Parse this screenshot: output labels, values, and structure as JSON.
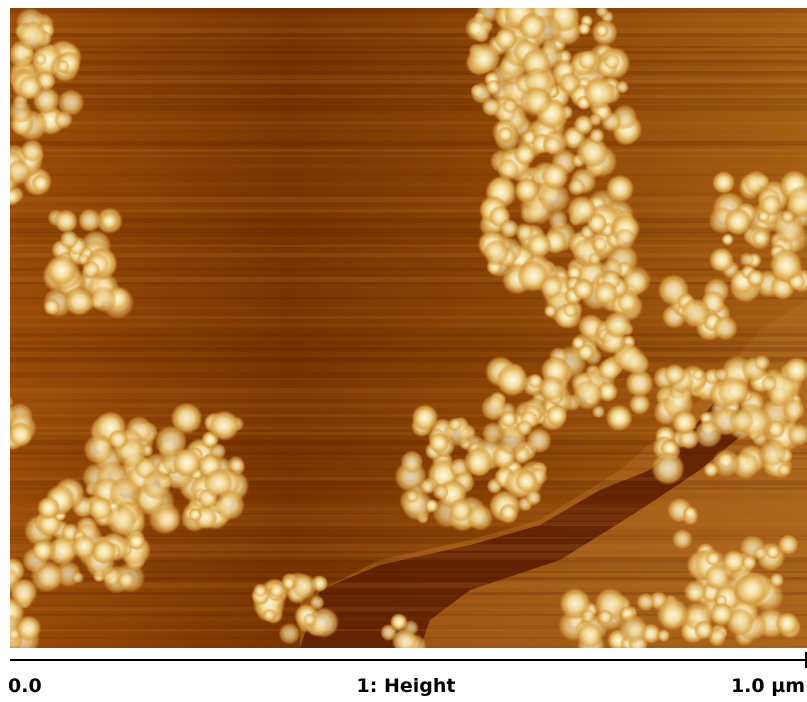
{
  "image": {
    "caption": "1: Height",
    "scale": {
      "start": "0.0",
      "end": "1.0 µm"
    }
  }
}
